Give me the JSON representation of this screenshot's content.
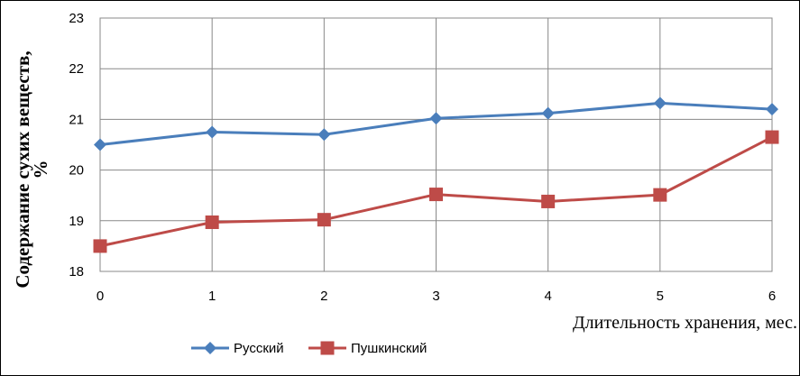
{
  "chart_data": {
    "type": "line",
    "title": "",
    "xlabel": "Длительность хранения, мес.",
    "ylabel_line1": "Содержание сухих веществ,",
    "ylabel_line2": "%",
    "x": [
      0,
      1,
      2,
      3,
      4,
      5,
      6
    ],
    "x_tick_labels": [
      "0",
      "1",
      "2",
      "3",
      "4",
      "5",
      "6"
    ],
    "ylim": [
      18,
      23
    ],
    "y_tick_labels": [
      "18",
      "19",
      "20",
      "21",
      "22",
      "23"
    ],
    "grid": true,
    "legend_position": "bottom",
    "series": [
      {
        "name": "Русский",
        "color": "#4A7EBB",
        "marker": "diamond",
        "values": [
          20.5,
          20.75,
          20.7,
          21.02,
          21.12,
          21.32,
          21.2
        ]
      },
      {
        "name": "Пушкинский",
        "color": "#BE4B48",
        "marker": "square",
        "values": [
          18.5,
          18.97,
          19.02,
          19.52,
          19.38,
          19.51,
          20.65
        ]
      }
    ]
  }
}
